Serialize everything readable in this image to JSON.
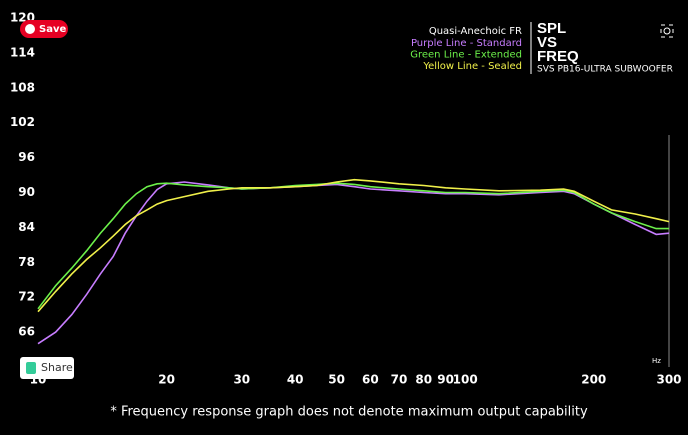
{
  "chart_data": {
    "type": "line",
    "title": "Quasi-Anechoic FR",
    "brand_lines": [
      "SPL",
      "VS",
      "FREQ"
    ],
    "subtitle": "SVS PB16-ULTRA SUBWOOFER",
    "x_unit": "Hz",
    "footnote": "* Frequency response graph does not denote maximum output capability",
    "save_button": "Save",
    "share_button": "Share",
    "xscale": "log",
    "x": [
      10,
      11,
      12,
      13,
      14,
      15,
      16,
      17,
      18,
      19,
      20,
      22,
      25,
      28,
      30,
      35,
      40,
      45,
      50,
      55,
      60,
      70,
      80,
      90,
      100,
      120,
      150,
      170,
      180,
      200,
      220,
      250,
      280,
      300
    ],
    "series": [
      {
        "name": "Purple Line - Standard",
        "color": "#c77dff",
        "values": [
          64,
          66,
          69,
          72.5,
          76,
          79,
          83,
          86,
          88.5,
          90.5,
          91.5,
          91.8,
          91.3,
          90.8,
          90.6,
          90.8,
          91,
          91.2,
          91.4,
          91,
          90.6,
          90.3,
          90,
          89.8,
          89.8,
          89.6,
          90,
          90.2,
          89.8,
          88,
          86.5,
          84.5,
          82.8,
          83
        ]
      },
      {
        "name": "Green Line - Extended",
        "color": "#6cf04a",
        "values": [
          70,
          74,
          77,
          80,
          83,
          85.5,
          88,
          89.8,
          91,
          91.5,
          91.6,
          91.3,
          91,
          90.8,
          90.6,
          90.8,
          91.2,
          91.4,
          91.6,
          91.4,
          91,
          90.6,
          90.3,
          90,
          90,
          89.8,
          90.2,
          90.4,
          90,
          88,
          86.5,
          85,
          83.8,
          83.8
        ]
      },
      {
        "name": "Yellow Line - Sealed",
        "color": "#f0f04a",
        "values": [
          69.5,
          73,
          76,
          78.5,
          80.5,
          82.5,
          84.5,
          86,
          87,
          88,
          88.6,
          89.3,
          90.2,
          90.6,
          90.8,
          90.8,
          91,
          91.2,
          91.8,
          92.2,
          92,
          91.5,
          91.2,
          90.8,
          90.6,
          90.3,
          90.4,
          90.6,
          90.2,
          88.5,
          87,
          86.3,
          85.5,
          85
        ]
      }
    ],
    "xlim": [
      10,
      300
    ],
    "xticks": [
      10,
      20,
      30,
      40,
      50,
      60,
      70,
      80,
      90,
      100,
      200,
      300
    ],
    "ylim": [
      60,
      120
    ],
    "yticks": [
      66,
      72,
      78,
      84,
      90,
      96,
      102,
      108,
      114,
      120
    ],
    "grid": false
  }
}
